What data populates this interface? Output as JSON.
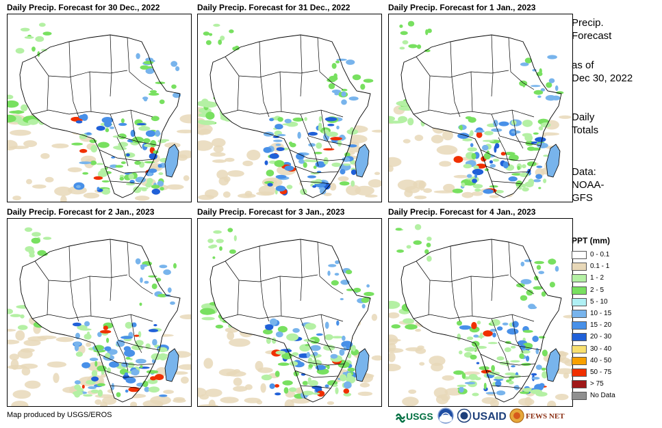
{
  "panels": [
    {
      "title": "Daily Precip. Forecast for 30 Dec., 2022"
    },
    {
      "title": "Daily Precip. Forecast for 31 Dec., 2022"
    },
    {
      "title": "Daily Precip. Forecast for 1 Jan., 2023"
    },
    {
      "title": "Daily Precip. Forecast for 2 Jan., 2023"
    },
    {
      "title": "Daily Precip. Forecast for 3 Jan., 2023"
    },
    {
      "title": "Daily Precip. Forecast for 4 Jan., 2023"
    }
  ],
  "sidebar": {
    "heading_line1": "Precip.",
    "heading_line2": "Forecast",
    "asof_line1": "as of",
    "asof_line2": "Dec 30, 2022",
    "totals_line1": "Daily",
    "totals_line2": "Totals",
    "data_line1": "Data:",
    "data_line2": "NOAA-",
    "data_line3": "GFS"
  },
  "legend": {
    "title": "PPT (mm)",
    "items": [
      {
        "label": "0 - 0.1",
        "color": "#ffffff"
      },
      {
        "label": "0.1 - 1",
        "color": "#e8d8b8"
      },
      {
        "label": "1 - 2",
        "color": "#b4f0a4"
      },
      {
        "label": "2 - 5",
        "color": "#78e060"
      },
      {
        "label": "5 - 10",
        "color": "#b0f0f4"
      },
      {
        "label": "10 - 15",
        "color": "#78b4ec"
      },
      {
        "label": "15 - 20",
        "color": "#4890e8"
      },
      {
        "label": "20 - 30",
        "color": "#2060d8"
      },
      {
        "label": "30 - 40",
        "color": "#f8e070"
      },
      {
        "label": "40 - 50",
        "color": "#f8a000"
      },
      {
        "label": "50 - 75",
        "color": "#f03000"
      },
      {
        "label": "> 75",
        "color": "#a01818"
      },
      {
        "label": "No Data",
        "color": "#909090"
      }
    ]
  },
  "footer": {
    "credit": "Map produced by USGS/EROS",
    "logos": {
      "usgs": "USGS",
      "usaid": "USAID",
      "fewsnet": "FEWS NET"
    }
  }
}
